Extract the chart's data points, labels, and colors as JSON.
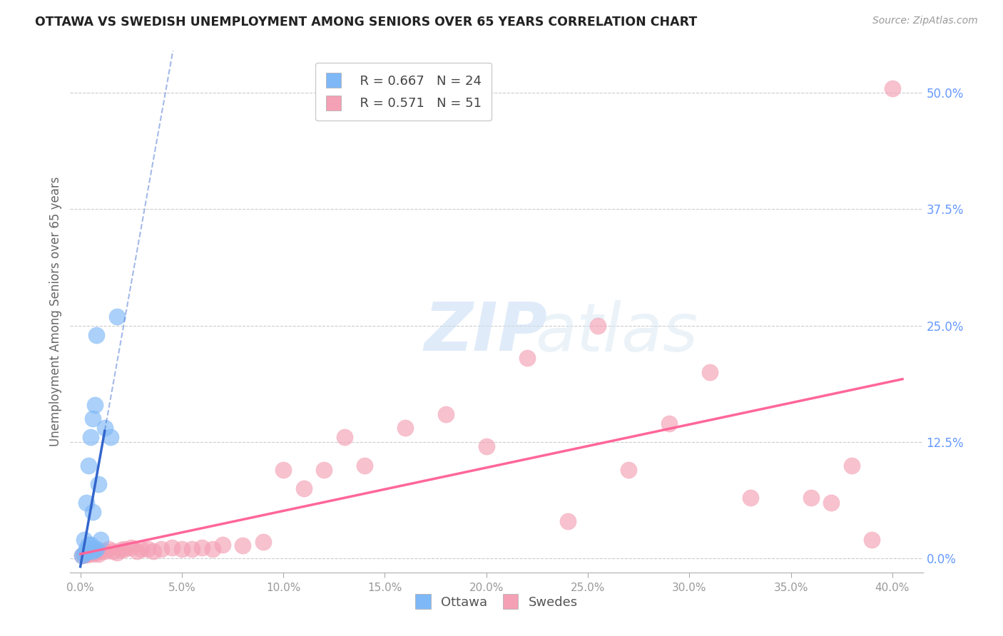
{
  "title": "OTTAWA VS SWEDISH UNEMPLOYMENT AMONG SENIORS OVER 65 YEARS CORRELATION CHART",
  "source": "Source: ZipAtlas.com",
  "xlabel_ticks": [
    0.0,
    0.05,
    0.1,
    0.15,
    0.2,
    0.25,
    0.3,
    0.35,
    0.4
  ],
  "ylabel_ticks": [
    0.0,
    0.125,
    0.25,
    0.375,
    0.5
  ],
  "ylabel_label": "Unemployment Among Seniors over 65 years",
  "xlim": [
    -0.005,
    0.415
  ],
  "ylim": [
    -0.015,
    0.545
  ],
  "ottawa_x": [
    0.001,
    0.002,
    0.002,
    0.003,
    0.003,
    0.003,
    0.004,
    0.004,
    0.004,
    0.005,
    0.005,
    0.005,
    0.006,
    0.006,
    0.006,
    0.007,
    0.007,
    0.008,
    0.008,
    0.009,
    0.01,
    0.012,
    0.015,
    0.018
  ],
  "ottawa_y": [
    0.003,
    0.005,
    0.02,
    0.008,
    0.01,
    0.06,
    0.008,
    0.015,
    0.1,
    0.01,
    0.015,
    0.13,
    0.008,
    0.05,
    0.15,
    0.01,
    0.165,
    0.01,
    0.24,
    0.08,
    0.02,
    0.14,
    0.13,
    0.26
  ],
  "swedes_x": [
    0.001,
    0.002,
    0.003,
    0.004,
    0.005,
    0.005,
    0.006,
    0.007,
    0.008,
    0.009,
    0.01,
    0.012,
    0.014,
    0.016,
    0.018,
    0.02,
    0.022,
    0.025,
    0.028,
    0.03,
    0.033,
    0.036,
    0.04,
    0.045,
    0.05,
    0.055,
    0.06,
    0.065,
    0.07,
    0.08,
    0.09,
    0.1,
    0.11,
    0.12,
    0.13,
    0.14,
    0.16,
    0.18,
    0.2,
    0.22,
    0.24,
    0.255,
    0.27,
    0.29,
    0.31,
    0.33,
    0.36,
    0.37,
    0.38,
    0.39,
    0.4
  ],
  "swedes_y": [
    0.003,
    0.004,
    0.004,
    0.005,
    0.006,
    0.008,
    0.005,
    0.007,
    0.006,
    0.005,
    0.008,
    0.008,
    0.01,
    0.008,
    0.006,
    0.009,
    0.01,
    0.012,
    0.008,
    0.01,
    0.01,
    0.008,
    0.01,
    0.012,
    0.01,
    0.01,
    0.012,
    0.01,
    0.015,
    0.014,
    0.018,
    0.095,
    0.075,
    0.095,
    0.13,
    0.1,
    0.14,
    0.155,
    0.12,
    0.215,
    0.04,
    0.25,
    0.095,
    0.145,
    0.2,
    0.065,
    0.065,
    0.06,
    0.1,
    0.02,
    0.505
  ],
  "ottawa_color": "#7EB8F7",
  "swedes_color": "#F4A0B5",
  "ottawa_line_color": "#3366CC",
  "swedes_line_color": "#FF6699",
  "legend_ottawa_r": "R = 0.667",
  "legend_ottawa_n": "N = 24",
  "legend_swedes_r": "R = 0.571",
  "legend_swedes_n": "N = 51",
  "watermark_zip": "ZIP",
  "watermark_atlas": "atlas",
  "background_color": "#ffffff"
}
